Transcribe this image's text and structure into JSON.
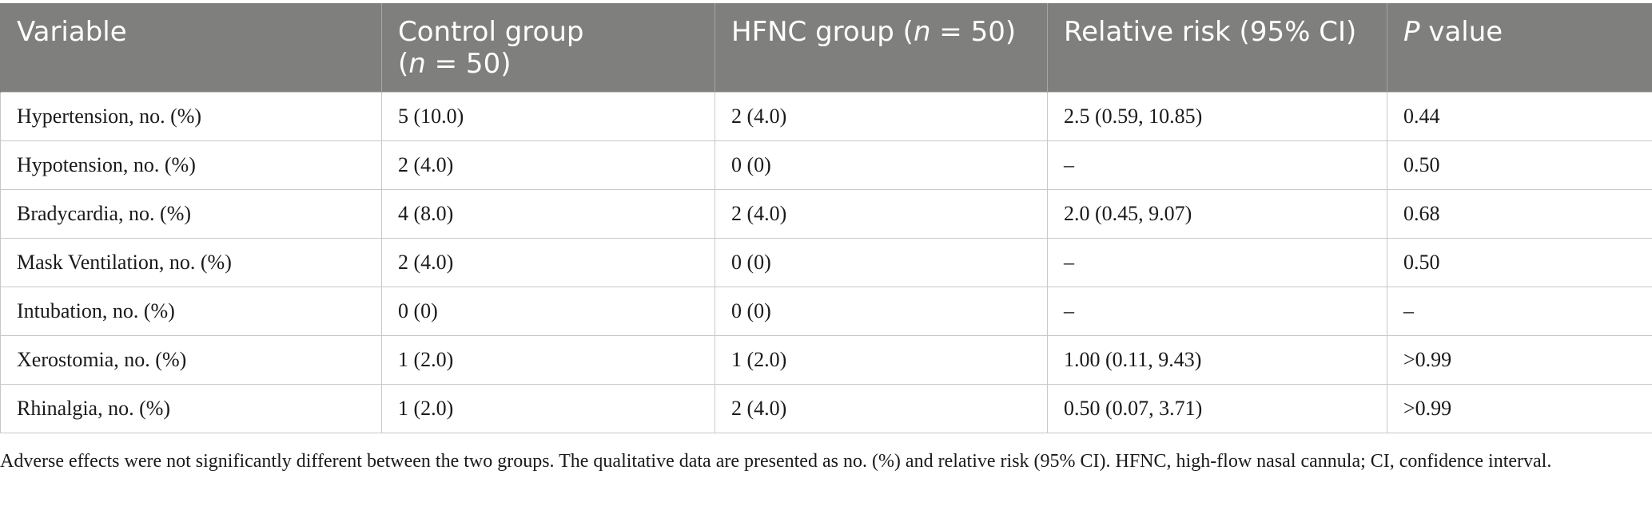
{
  "table": {
    "headers": {
      "variable": "Variable",
      "control_prefix": "Control group",
      "control_n_var": "n",
      "control_n_value": " = 50)",
      "hfnc_prefix": "HFNC group (",
      "hfnc_n_var": "n",
      "hfnc_n_value": " = 50)",
      "relative_risk": "Relative risk (95% CI)",
      "p_var": "P",
      "p_suffix": " value"
    },
    "rows": [
      {
        "variable": "Hypertension, no. (%)",
        "control": "5 (10.0)",
        "hfnc": "2 (4.0)",
        "rr": "2.5 (0.59, 10.85)",
        "p": "0.44"
      },
      {
        "variable": "Hypotension, no. (%)",
        "control": "2 (4.0)",
        "hfnc": "0 (0)",
        "rr": "–",
        "p": "0.50"
      },
      {
        "variable": "Bradycardia, no. (%)",
        "control": "4 (8.0)",
        "hfnc": "2 (4.0)",
        "rr": "2.0 (0.45, 9.07)",
        "p": "0.68"
      },
      {
        "variable": "Mask Ventilation, no. (%)",
        "control": "2 (4.0)",
        "hfnc": "0 (0)",
        "rr": "–",
        "p": "0.50"
      },
      {
        "variable": "Intubation, no. (%)",
        "control": "0 (0)",
        "hfnc": "0 (0)",
        "rr": "–",
        "p": "–"
      },
      {
        "variable": "Xerostomia, no. (%)",
        "control": "1 (2.0)",
        "hfnc": "1 (2.0)",
        "rr": "1.00 (0.11, 9.43)",
        "p": ">0.99"
      },
      {
        "variable": "Rhinalgia, no. (%)",
        "control": "1 (2.0)",
        "hfnc": "2 (4.0)",
        "rr": "0.50 (0.07, 3.71)",
        "p": ">0.99"
      }
    ]
  },
  "footnote": "Adverse effects were not significantly different between the two groups. The qualitative data are presented as no. (%) and relative risk (95% CI). HFNC, high-flow nasal cannula; CI, confidence interval."
}
